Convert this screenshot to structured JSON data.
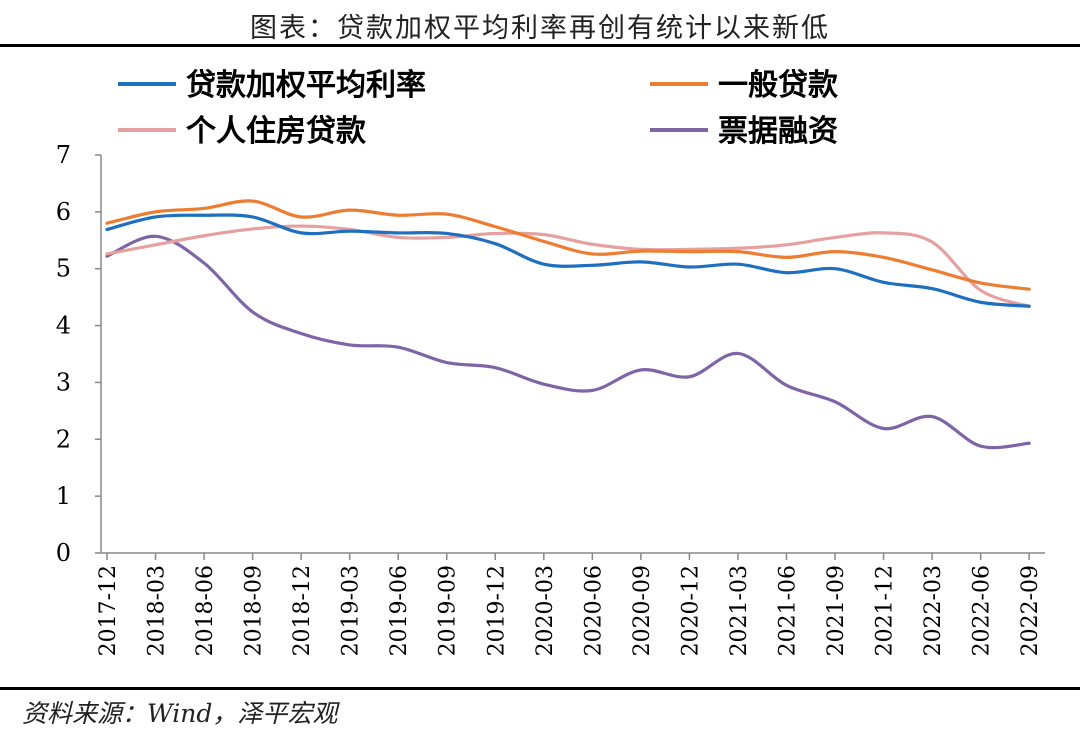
{
  "title": "图表：贷款加权平均利率再创有统计以来新低",
  "source": "资料来源：Wind，泽平宏观",
  "chart_data": {
    "type": "line",
    "x": [
      "2017-12",
      "2018-03",
      "2018-06",
      "2018-09",
      "2018-12",
      "2019-03",
      "2019-06",
      "2019-09",
      "2019-12",
      "2020-03",
      "2020-06",
      "2020-09",
      "2020-12",
      "2021-03",
      "2021-06",
      "2021-09",
      "2021-12",
      "2022-03",
      "2022-06",
      "2022-09"
    ],
    "ylim": [
      0,
      7
    ],
    "yticks": [
      0,
      1,
      2,
      3,
      4,
      5,
      6,
      7
    ],
    "legend_position": "top",
    "series": [
      {
        "name": "贷款加权平均利率",
        "color": "#1F6FC0",
        "values": [
          5.69,
          5.91,
          5.94,
          5.91,
          5.63,
          5.66,
          5.63,
          5.62,
          5.44,
          5.08,
          5.06,
          5.12,
          5.03,
          5.08,
          4.93,
          5.0,
          4.76,
          4.65,
          4.41,
          4.34
        ]
      },
      {
        "name": "一般贷款",
        "color": "#ED7D31",
        "values": [
          5.8,
          6.0,
          6.06,
          6.19,
          5.91,
          6.03,
          5.94,
          5.96,
          5.74,
          5.48,
          5.26,
          5.31,
          5.3,
          5.3,
          5.2,
          5.3,
          5.2,
          4.98,
          4.75,
          4.64
        ]
      },
      {
        "name": "个人住房贷款",
        "color": "#E5A0A0",
        "values": [
          5.26,
          5.42,
          5.58,
          5.7,
          5.75,
          5.69,
          5.55,
          5.55,
          5.62,
          5.6,
          5.43,
          5.34,
          5.34,
          5.36,
          5.42,
          5.55,
          5.63,
          5.47,
          4.62,
          4.34
        ]
      },
      {
        "name": "票据融资",
        "color": "#7F64A6",
        "values": [
          5.22,
          5.57,
          5.1,
          4.24,
          3.86,
          3.66,
          3.62,
          3.35,
          3.26,
          2.97,
          2.86,
          3.22,
          3.1,
          3.51,
          2.95,
          2.66,
          2.19,
          2.4,
          1.88,
          1.93
        ]
      }
    ]
  }
}
